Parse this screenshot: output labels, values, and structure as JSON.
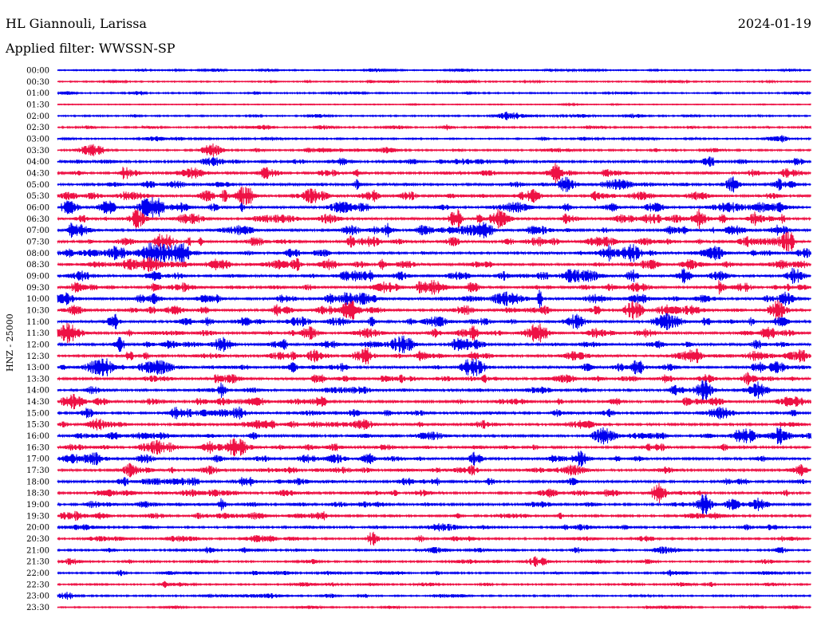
{
  "header": {
    "station": "HL Giannouli, Larissa",
    "date": "2024-01-19",
    "filter_label": "Applied filter: WWSSN-SP"
  },
  "chart_data": {
    "type": "line",
    "title": "HL Giannouli, Larissa",
    "subtitle": "Applied filter: WWSSN-SP",
    "date": "2024-01-19",
    "ylabel": "HNZ - 25000",
    "xlabel": "",
    "rows": [
      "00:00",
      "00:30",
      "01:00",
      "01:30",
      "02:00",
      "02:30",
      "03:00",
      "03:30",
      "04:00",
      "04:30",
      "05:00",
      "05:30",
      "06:00",
      "06:30",
      "07:00",
      "07:30",
      "08:00",
      "08:30",
      "09:00",
      "09:30",
      "10:00",
      "10:30",
      "11:00",
      "11:30",
      "12:00",
      "12:30",
      "13:00",
      "13:30",
      "14:00",
      "14:30",
      "15:00",
      "15:30",
      "16:00",
      "16:30",
      "17:00",
      "17:30",
      "18:00",
      "18:30",
      "19:00",
      "19:30",
      "20:00",
      "20:30",
      "21:00",
      "21:30",
      "22:00",
      "22:30",
      "23:00",
      "23:30"
    ],
    "row_minutes": 30,
    "activity": [
      0.3,
      0.3,
      0.35,
      0.1,
      0.4,
      0.45,
      0.45,
      0.5,
      0.7,
      0.8,
      0.9,
      1.0,
      1.0,
      1.0,
      1.0,
      1.0,
      1.0,
      1.0,
      1.0,
      1.0,
      1.0,
      1.0,
      1.0,
      1.0,
      1.0,
      1.0,
      1.0,
      0.9,
      0.85,
      0.85,
      0.8,
      0.8,
      0.85,
      0.8,
      0.85,
      0.8,
      0.8,
      0.75,
      0.75,
      0.7,
      0.65,
      0.6,
      0.55,
      0.5,
      0.5,
      0.45,
      0.45,
      0.3
    ],
    "colors": [
      "#0000ee",
      "#ee1144"
    ],
    "grid": false,
    "legend": "none"
  }
}
